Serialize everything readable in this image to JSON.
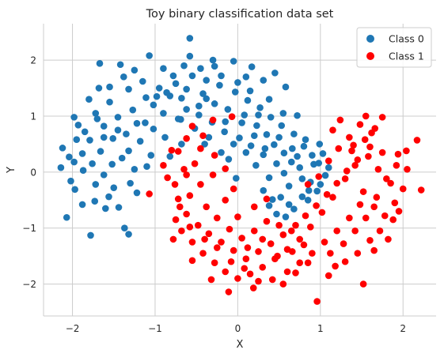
{
  "chart_data": {
    "type": "scatter",
    "title": "Toy binary classification data set",
    "xlabel": "X",
    "ylabel": "Y",
    "xlim": [
      -2.35,
      2.4
    ],
    "ylim": [
      -2.57,
      2.65
    ],
    "xticks": [
      -2,
      -1,
      0,
      1,
      2
    ],
    "xtick_labels": [
      "−2",
      "−1",
      "0",
      "1",
      "2"
    ],
    "yticks": [
      -2,
      -1,
      0,
      1,
      2
    ],
    "ytick_labels": [
      "−2",
      "−1",
      "0",
      "1",
      "2"
    ],
    "grid": true,
    "legend_position": "top-right",
    "series": [
      {
        "name": "Class 0",
        "color": "#1f77b4",
        "points": [
          [
            -2.07,
            -0.81
          ],
          [
            -2.12,
            0.43
          ],
          [
            -1.78,
            -1.13
          ],
          [
            -1.67,
            1.94
          ],
          [
            -0.58,
            2.39
          ],
          [
            -0.58,
            2.07
          ],
          [
            -1.07,
            2.08
          ],
          [
            -0.05,
            1.98
          ],
          [
            0.17,
            1.88
          ],
          [
            -0.28,
            1.89
          ],
          [
            -1.37,
            -1.0
          ],
          [
            -1.32,
            -1.11
          ],
          [
            -0.69,
            0.94
          ],
          [
            -0.11,
            0.23
          ],
          [
            -0.02,
            -0.11
          ],
          [
            0.31,
            -0.33
          ],
          [
            0.47,
            -0.75
          ],
          [
            0.42,
            -0.49
          ],
          [
            0.62,
            -0.58
          ],
          [
            0.78,
            -0.44
          ],
          [
            0.86,
            -0.33
          ],
          [
            0.96,
            -0.34
          ],
          [
            0.72,
            0.28
          ],
          [
            0.92,
            0.14
          ],
          [
            1.06,
            -0.06
          ],
          [
            1.03,
            0.33
          ],
          [
            0.82,
            0.58
          ],
          [
            0.72,
            1.01
          ],
          [
            0.58,
            1.52
          ],
          [
            0.31,
            1.64
          ],
          [
            0.45,
            1.77
          ],
          [
            -0.47,
            1.02
          ],
          [
            -1.93,
            0.84
          ],
          [
            -1.76,
            0.15
          ],
          [
            -1.97,
            -0.31
          ],
          [
            -1.73,
            -0.52
          ],
          [
            -1.5,
            -0.28
          ],
          [
            -1.22,
            -0.37
          ],
          [
            -1.1,
            0.1
          ],
          [
            -1.32,
            0.38
          ],
          [
            -1.51,
            0.6
          ],
          [
            -1.45,
            0.75
          ],
          [
            -1.22,
            0.87
          ],
          [
            -1.02,
            1.2
          ],
          [
            -0.82,
            1.36
          ],
          [
            -0.62,
            1.48
          ],
          [
            -0.38,
            1.31
          ],
          [
            -0.12,
            1.12
          ],
          [
            0.08,
            1.02
          ],
          [
            0.23,
            0.83
          ],
          [
            0.35,
            0.67
          ],
          [
            0.44,
            0.49
          ],
          [
            0.56,
            0.34
          ],
          [
            0.65,
            0.18
          ],
          [
            0.56,
            -0.02
          ],
          [
            0.47,
            0.15
          ],
          [
            0.31,
            0.31
          ],
          [
            0.16,
            0.47
          ],
          [
            0.02,
            0.61
          ],
          [
            -0.16,
            0.72
          ],
          [
            -0.31,
            0.89
          ],
          [
            -0.47,
            1.18
          ],
          [
            -0.68,
            1.32
          ],
          [
            -0.86,
            1.42
          ],
          [
            -1.11,
            1.33
          ],
          [
            -1.27,
            1.11
          ],
          [
            -1.45,
            0.98
          ],
          [
            -1.62,
            0.82
          ],
          [
            -1.79,
            0.57
          ],
          [
            -1.88,
            0.33
          ],
          [
            -1.87,
            0.03
          ],
          [
            -1.72,
            -0.22
          ],
          [
            -1.56,
            -0.44
          ],
          [
            -1.44,
            -0.63
          ],
          [
            -2.02,
            -0.16
          ],
          [
            -1.98,
            0.18
          ],
          [
            -1.66,
            0.37
          ],
          [
            -1.52,
            0.14
          ],
          [
            -1.35,
            0.68
          ],
          [
            -1.18,
            0.55
          ],
          [
            -1.02,
            0.77
          ],
          [
            -0.9,
            1.05
          ],
          [
            -0.75,
            1.58
          ],
          [
            -0.55,
            1.72
          ],
          [
            -0.38,
            1.64
          ],
          [
            -0.22,
            1.55
          ],
          [
            -0.03,
            1.43
          ],
          [
            0.12,
            1.28
          ],
          [
            0.27,
            1.15
          ],
          [
            0.4,
            0.98
          ],
          [
            0.53,
            0.83
          ],
          [
            0.68,
            0.68
          ],
          [
            0.8,
            0.46
          ],
          [
            0.9,
            0.3
          ],
          [
            0.98,
            0.16
          ],
          [
            0.78,
            -0.12
          ],
          [
            0.62,
            -0.25
          ],
          [
            0.38,
            -0.1
          ],
          [
            0.22,
            0.12
          ],
          [
            0.1,
            0.35
          ],
          [
            -0.05,
            0.5
          ],
          [
            -0.2,
            0.35
          ],
          [
            -0.35,
            0.62
          ],
          [
            -0.52,
            0.78
          ],
          [
            -0.72,
            0.95
          ],
          [
            -0.95,
            1.5
          ],
          [
            -1.15,
            1.62
          ],
          [
            -1.32,
            1.48
          ],
          [
            -1.55,
            1.25
          ],
          [
            -1.72,
            1.05
          ],
          [
            -1.85,
            0.72
          ],
          [
            -1.95,
            0.58
          ],
          [
            -2.04,
            0.27
          ],
          [
            -1.62,
            -0.05
          ],
          [
            -1.4,
            0.25
          ],
          [
            -1.25,
            0.05
          ],
          [
            -1.05,
            0.3
          ],
          [
            -0.88,
            0.62
          ],
          [
            -0.62,
            1.12
          ],
          [
            -0.42,
            1.4
          ],
          [
            -0.28,
            1.22
          ],
          [
            0.05,
            0.88
          ],
          [
            0.2,
            0.65
          ],
          [
            0.33,
            0.42
          ],
          [
            0.5,
            0.62
          ],
          [
            0.66,
            0.42
          ],
          [
            0.75,
            0.08
          ],
          [
            0.88,
            -0.18
          ],
          [
            1.0,
            -0.22
          ],
          [
            0.52,
            -0.45
          ],
          [
            0.38,
            -0.6
          ],
          [
            0.58,
            -0.8
          ],
          [
            -1.6,
            -0.65
          ],
          [
            -1.88,
            -0.58
          ],
          [
            -1.62,
            0.62
          ],
          [
            -1.12,
            0.88
          ],
          [
            -0.98,
            1.35
          ],
          [
            -0.78,
            1.72
          ],
          [
            -0.65,
            1.9
          ],
          [
            -0.45,
            1.85
          ],
          [
            -0.2,
            1.72
          ],
          [
            0.0,
            1.6
          ],
          [
            0.15,
            1.45
          ],
          [
            0.38,
            1.3
          ],
          [
            0.55,
            1.05
          ],
          [
            0.25,
            1.02
          ],
          [
            -0.15,
            0.9
          ],
          [
            -0.4,
            0.5
          ],
          [
            -1.38,
            1.7
          ],
          [
            -1.55,
            1.52
          ],
          [
            -1.8,
            1.3
          ],
          [
            -1.25,
            1.82
          ],
          [
            -0.9,
            1.85
          ],
          [
            -0.3,
            2.0
          ],
          [
            0.1,
            1.7
          ],
          [
            -0.82,
            0.28
          ],
          [
            -0.68,
            0.5
          ],
          [
            -1.7,
            0.95
          ],
          [
            -1.98,
            0.98
          ],
          [
            -2.14,
            0.08
          ],
          [
            -1.3,
            -0.2
          ],
          [
            0.85,
            -0.5
          ],
          [
            0.68,
            -0.66
          ],
          [
            1.1,
            0.08
          ],
          [
            0.99,
            0.5
          ],
          [
            -1.68,
            1.5
          ],
          [
            -1.42,
            1.92
          ]
        ]
      },
      {
        "name": "Class 1",
        "color": "#ff0000",
        "points": [
          [
            -0.11,
            -2.14
          ],
          [
            0.19,
            -2.07
          ],
          [
            0.96,
            -2.31
          ],
          [
            1.52,
            -2.0
          ],
          [
            -0.15,
            0.06
          ],
          [
            -0.07,
            0.99
          ],
          [
            -0.3,
            0.93
          ],
          [
            -0.8,
            0.39
          ],
          [
            -0.72,
            0.37
          ],
          [
            -1.07,
            -0.39
          ],
          [
            -0.76,
            -0.22
          ],
          [
            2.17,
            0.57
          ],
          [
            2.22,
            -0.32
          ],
          [
            2.04,
            0.38
          ],
          [
            1.94,
            0.32
          ],
          [
            1.75,
            0.98
          ],
          [
            1.66,
            0.78
          ],
          [
            1.24,
            0.93
          ],
          [
            1.54,
            0.58
          ],
          [
            1.38,
            0.38
          ],
          [
            1.42,
            0.12
          ],
          [
            1.3,
            -0.12
          ],
          [
            1.52,
            -0.35
          ],
          [
            1.65,
            -0.62
          ],
          [
            1.78,
            -0.78
          ],
          [
            1.9,
            -0.55
          ],
          [
            1.85,
            -0.2
          ],
          [
            1.7,
            0.05
          ],
          [
            1.58,
            0.28
          ],
          [
            1.15,
            -0.45
          ],
          [
            1.02,
            -0.72
          ],
          [
            0.88,
            -0.98
          ],
          [
            0.75,
            -1.2
          ],
          [
            0.6,
            -1.38
          ],
          [
            0.45,
            -1.55
          ],
          [
            0.3,
            -1.7
          ],
          [
            0.15,
            -1.82
          ],
          [
            0.0,
            -1.9
          ],
          [
            -0.15,
            -1.78
          ],
          [
            -0.28,
            -1.62
          ],
          [
            -0.42,
            -1.45
          ],
          [
            -0.55,
            -1.25
          ],
          [
            -0.68,
            -1.05
          ],
          [
            -0.75,
            -0.85
          ],
          [
            -0.7,
            -0.62
          ],
          [
            -0.58,
            -0.42
          ],
          [
            -0.45,
            -0.22
          ],
          [
            -0.3,
            -0.05
          ],
          [
            -0.52,
            0.15
          ],
          [
            -0.65,
            0.05
          ],
          [
            -0.85,
            -0.1
          ],
          [
            -0.62,
            -0.75
          ],
          [
            -0.48,
            -0.95
          ],
          [
            -0.35,
            -1.1
          ],
          [
            -0.2,
            -1.25
          ],
          [
            -0.05,
            -1.4
          ],
          [
            0.1,
            -1.55
          ],
          [
            0.25,
            -1.42
          ],
          [
            0.4,
            -1.28
          ],
          [
            0.55,
            -1.12
          ],
          [
            0.7,
            -0.95
          ],
          [
            0.82,
            -0.78
          ],
          [
            0.95,
            -0.6
          ],
          [
            1.08,
            -0.4
          ],
          [
            1.2,
            -0.2
          ],
          [
            1.32,
            0.02
          ],
          [
            1.45,
            0.22
          ],
          [
            1.6,
            0.45
          ],
          [
            1.48,
            -0.58
          ],
          [
            1.35,
            -0.82
          ],
          [
            1.2,
            -1.05
          ],
          [
            1.05,
            -1.25
          ],
          [
            0.9,
            -1.45
          ],
          [
            0.75,
            -1.62
          ],
          [
            0.6,
            -1.78
          ],
          [
            0.42,
            -1.92
          ],
          [
            0.25,
            -1.95
          ],
          [
            0.08,
            -1.72
          ],
          [
            -0.08,
            -1.6
          ],
          [
            -0.25,
            -1.35
          ],
          [
            -0.4,
            -1.2
          ],
          [
            -0.58,
            -0.98
          ],
          [
            -0.72,
            -0.48
          ],
          [
            -0.38,
            -0.62
          ],
          [
            -0.25,
            -0.82
          ],
          [
            -0.1,
            -1.02
          ],
          [
            0.05,
            -1.18
          ],
          [
            0.2,
            -1.05
          ],
          [
            0.35,
            -0.88
          ],
          [
            0.5,
            -0.95
          ],
          [
            0.65,
            -1.05
          ],
          [
            0.8,
            -1.3
          ],
          [
            1.12,
            -1.45
          ],
          [
            1.28,
            -1.28
          ],
          [
            1.42,
            -1.05
          ],
          [
            1.55,
            -0.82
          ],
          [
            1.68,
            -0.45
          ],
          [
            1.8,
            -0.12
          ],
          [
            1.92,
            0.12
          ],
          [
            1.75,
            0.35
          ],
          [
            1.62,
            0.7
          ],
          [
            1.48,
            0.85
          ],
          [
            1.35,
            0.62
          ],
          [
            1.22,
            0.42
          ],
          [
            1.1,
            0.2
          ],
          [
            0.98,
            -0.08
          ],
          [
            0.85,
            -0.22
          ],
          [
            -0.45,
            0.42
          ],
          [
            -0.28,
            0.3
          ],
          [
            -0.62,
            0.6
          ],
          [
            -0.55,
            0.82
          ],
          [
            -0.9,
            0.12
          ],
          [
            -0.78,
            -1.2
          ],
          [
            0.12,
            -1.35
          ],
          [
            0.3,
            -1.2
          ],
          [
            0.48,
            -1.5
          ],
          [
            0.66,
            -1.42
          ],
          [
            0.85,
            -1.62
          ],
          [
            1.3,
            -1.6
          ],
          [
            1.45,
            -1.45
          ],
          [
            1.6,
            -1.22
          ],
          [
            1.72,
            -1.05
          ],
          [
            1.88,
            -0.85
          ],
          [
            2.0,
            -0.3
          ],
          [
            2.05,
            0.05
          ],
          [
            1.95,
            -0.7
          ],
          [
            1.1,
            -1.85
          ],
          [
            0.55,
            -2.0
          ],
          [
            -0.32,
            -1.92
          ],
          [
            -0.55,
            -1.58
          ],
          [
            0.0,
            -0.8
          ],
          [
            0.2,
            -0.62
          ],
          [
            0.35,
            -0.48
          ],
          [
            -0.15,
            -0.5
          ],
          [
            -0.05,
            -0.3
          ],
          [
            1.4,
            0.48
          ],
          [
            1.15,
            0.75
          ],
          [
            1.55,
            1.0
          ],
          [
            -0.42,
            0.65
          ],
          [
            -0.62,
            -0.05
          ],
          [
            0.7,
            -1.8
          ],
          [
            1.18,
            -1.68
          ],
          [
            1.65,
            -1.4
          ],
          [
            1.82,
            -1.2
          ]
        ]
      }
    ]
  }
}
